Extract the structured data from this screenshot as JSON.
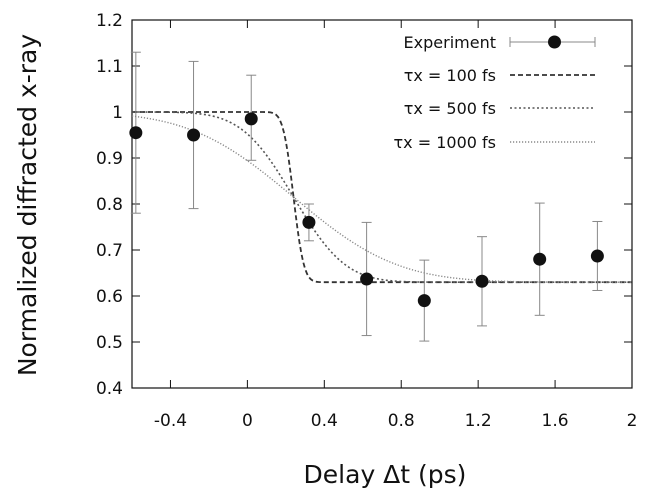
{
  "chart_data": {
    "type": "scatter",
    "title": "",
    "xlabel": "Delay Δt (ps)",
    "ylabel": "Normalized diffracted x-ray",
    "xlim": [
      -0.6,
      2.0
    ],
    "ylim": [
      0.4,
      1.2
    ],
    "x_ticks": [
      -0.4,
      0,
      0.4,
      0.8,
      1.2,
      1.6,
      2
    ],
    "x_tick_labels": [
      "-0.4",
      "0",
      "0.4",
      "0.8",
      "1.2",
      "1.6",
      "2"
    ],
    "y_ticks": [
      0.4,
      0.5,
      0.6,
      0.7,
      0.8,
      0.9,
      1.0,
      1.1,
      1.2
    ],
    "y_tick_labels": [
      "0.4",
      "0.5",
      "0.6",
      "0.7",
      "0.8",
      "0.9",
      "1",
      "1.1",
      "1.2"
    ],
    "grid": false,
    "legend_position": "top-right",
    "experiment": {
      "name": "Experiment",
      "x": [
        -0.58,
        -0.28,
        0.02,
        0.32,
        0.62,
        0.92,
        1.22,
        1.52,
        1.82
      ],
      "y": [
        0.955,
        0.95,
        0.985,
        0.76,
        0.637,
        0.59,
        0.632,
        0.68,
        0.687
      ],
      "err_low": [
        0.175,
        0.16,
        0.09,
        0.04,
        0.123,
        0.088,
        0.097,
        0.122,
        0.075
      ],
      "err_high": [
        0.175,
        0.16,
        0.095,
        0.04,
        0.123,
        0.088,
        0.097,
        0.122,
        0.075
      ],
      "color": "#111111"
    },
    "series": [
      {
        "name": "τx = 100 fs",
        "plateau_high": 1.0,
        "plateau_low": 0.63,
        "transition_center": 0.24,
        "tau_ps": 0.1,
        "color": "#333333",
        "dash": "dashed"
      },
      {
        "name": "τx = 500 fs",
        "plateau_high": 1.0,
        "plateau_low": 0.63,
        "transition_center": 0.24,
        "tau_ps": 0.5,
        "color": "#555555",
        "dash": "dotted"
      },
      {
        "name": "τx = 1000 fs",
        "plateau_high": 1.0,
        "plateau_low": 0.63,
        "transition_center": 0.24,
        "tau_ps": 1.0,
        "color": "#888888",
        "dash": "fine-dotted"
      }
    ]
  }
}
